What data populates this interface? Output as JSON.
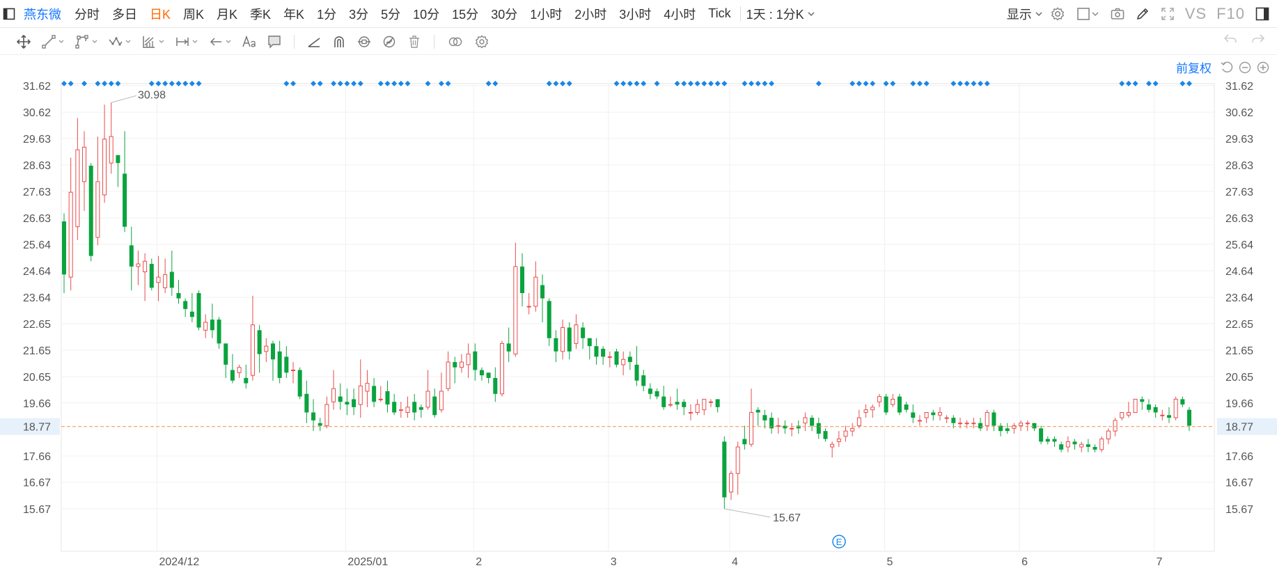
{
  "topbar": {
    "stock_name": "燕东微",
    "periods": [
      {
        "label": "分时",
        "active": false
      },
      {
        "label": "多日",
        "active": false
      },
      {
        "label": "日K",
        "active": true
      },
      {
        "label": "周K",
        "active": false
      },
      {
        "label": "月K",
        "active": false
      },
      {
        "label": "季K",
        "active": false
      },
      {
        "label": "年K",
        "active": false
      },
      {
        "label": "1分",
        "active": false
      },
      {
        "label": "3分",
        "active": false
      },
      {
        "label": "5分",
        "active": false
      },
      {
        "label": "10分",
        "active": false
      },
      {
        "label": "15分",
        "active": false
      },
      {
        "label": "30分",
        "active": false
      },
      {
        "label": "1小时",
        "active": false
      },
      {
        "label": "2小时",
        "active": false
      },
      {
        "label": "3小时",
        "active": false
      },
      {
        "label": "4小时",
        "active": false
      },
      {
        "label": "Tick",
        "active": false
      }
    ],
    "cycle_label": "1天 : 1分K",
    "display_label": "显示",
    "vs_label": "VS",
    "f10_label": "F10"
  },
  "toolbar": {
    "tools": [
      "move-icon",
      "line-icon",
      "polyline-icon",
      "wave-icon",
      "channel-icon",
      "measure-icon",
      "arrow-icon",
      "text-icon",
      "comment-icon",
      "ray-icon",
      "magnet-icon",
      "lock-icon",
      "hide-icon",
      "trash-icon",
      "link-icon",
      "settings-icon"
    ]
  },
  "adjust": {
    "label": "前复权"
  },
  "chart_data": {
    "type": "candlestick",
    "title": "",
    "x_tick_labels": [
      "2024/12",
      "2025/01",
      "2",
      "3",
      "4",
      "5",
      "6",
      "7"
    ],
    "y_ticks": [
      31.62,
      30.62,
      29.63,
      28.63,
      27.63,
      26.63,
      25.64,
      24.64,
      23.64,
      22.65,
      21.65,
      20.65,
      19.66,
      18.77,
      17.66,
      16.67,
      15.67
    ],
    "ylim": [
      14.8,
      31.96
    ],
    "current_price": 18.77,
    "max_label": 30.98,
    "min_label": 15.67,
    "event_marker": "E",
    "colors": {
      "up": "#e84b4b",
      "down": "#0aa33e",
      "signal": "#1a86e8",
      "price_line": "#f0914a",
      "grid": "#f0f0f0"
    },
    "candles": [
      [
        26.5,
        24.5,
        23.8,
        26.8
      ],
      [
        24.4,
        27.6,
        23.9,
        28.9
      ],
      [
        26.3,
        29.2,
        25.8,
        30.4
      ],
      [
        28.0,
        29.3,
        26.9,
        29.9
      ],
      [
        28.6,
        25.2,
        25.0,
        28.7
      ],
      [
        25.9,
        28.0,
        25.6,
        29.7
      ],
      [
        27.5,
        29.6,
        27.2,
        30.9
      ],
      [
        28.7,
        29.7,
        28.3,
        30.98
      ],
      [
        29.0,
        28.7,
        27.8,
        29.0
      ],
      [
        28.3,
        26.3,
        26.1,
        29.9
      ],
      [
        25.6,
        24.8,
        23.9,
        26.3
      ],
      [
        24.8,
        24.9,
        24.1,
        25.4
      ],
      [
        24.6,
        25.0,
        23.5,
        25.3
      ],
      [
        24.9,
        24.0,
        23.9,
        25.1
      ],
      [
        24.2,
        24.4,
        23.5,
        25.2
      ],
      [
        24.0,
        24.5,
        23.8,
        25.1
      ],
      [
        24.6,
        24.0,
        23.7,
        25.4
      ],
      [
        23.8,
        23.6,
        23.4,
        24.3
      ],
      [
        23.5,
        23.2,
        22.9,
        23.6
      ],
      [
        23.1,
        22.9,
        22.7,
        23.8
      ],
      [
        23.8,
        22.5,
        22.4,
        23.9
      ],
      [
        22.4,
        22.7,
        22.1,
        23.0
      ],
      [
        22.8,
        22.4,
        22.1,
        23.4
      ],
      [
        22.8,
        21.9,
        21.7,
        22.9
      ],
      [
        21.9,
        21.1,
        20.6,
        21.9
      ],
      [
        20.9,
        20.5,
        20.4,
        21.5
      ],
      [
        20.8,
        21.0,
        20.6,
        21.1
      ],
      [
        20.6,
        20.4,
        20.2,
        21.1
      ],
      [
        20.7,
        22.6,
        20.5,
        23.7
      ],
      [
        22.4,
        21.5,
        20.8,
        22.6
      ],
      [
        21.6,
        21.8,
        21.2,
        22.1
      ],
      [
        21.9,
        21.3,
        20.5,
        22.0
      ],
      [
        21.6,
        20.6,
        20.4,
        22.0
      ],
      [
        21.4,
        20.8,
        20.6,
        21.8
      ],
      [
        20.9,
        20.9,
        20.4,
        21.2
      ],
      [
        20.9,
        19.9,
        19.8,
        21.0
      ],
      [
        20.0,
        19.3,
        18.9,
        20.5
      ],
      [
        19.3,
        19.0,
        18.6,
        19.8
      ],
      [
        18.9,
        18.8,
        18.6,
        19.1
      ],
      [
        18.8,
        19.6,
        18.7,
        19.9
      ],
      [
        19.7,
        20.2,
        19.4,
        20.9
      ],
      [
        19.9,
        19.7,
        19.4,
        20.4
      ],
      [
        19.7,
        19.6,
        19.2,
        20.2
      ],
      [
        19.8,
        19.5,
        19.2,
        20.2
      ],
      [
        19.6,
        20.3,
        19.1,
        21.3
      ],
      [
        20.1,
        20.4,
        19.5,
        20.9
      ],
      [
        20.3,
        19.7,
        19.5,
        20.6
      ],
      [
        19.8,
        19.8,
        19.7,
        20.3
      ],
      [
        20.1,
        19.6,
        19.3,
        20.5
      ],
      [
        19.7,
        19.3,
        19.2,
        20.0
      ],
      [
        19.4,
        19.4,
        19.1,
        19.7
      ],
      [
        19.3,
        19.5,
        19.1,
        19.9
      ],
      [
        19.7,
        19.3,
        19.0,
        20.0
      ],
      [
        19.5,
        19.4,
        19.1,
        19.6
      ],
      [
        19.5,
        20.1,
        19.4,
        20.9
      ],
      [
        19.9,
        19.2,
        19.1,
        20.2
      ],
      [
        19.4,
        20.1,
        19.3,
        20.8
      ],
      [
        20.2,
        21.2,
        20.1,
        21.6
      ],
      [
        21.2,
        21.0,
        20.4,
        21.4
      ],
      [
        21.0,
        21.2,
        20.8,
        21.5
      ],
      [
        21.1,
        21.5,
        20.6,
        21.9
      ],
      [
        21.6,
        20.9,
        20.5,
        21.9
      ],
      [
        20.9,
        20.7,
        20.5,
        21.0
      ],
      [
        20.8,
        20.6,
        20.4,
        20.8
      ],
      [
        20.6,
        20.0,
        19.7,
        21.0
      ],
      [
        20.0,
        21.9,
        19.9,
        22.0
      ],
      [
        21.9,
        21.6,
        21.2,
        22.5
      ],
      [
        21.5,
        24.8,
        21.4,
        25.7
      ],
      [
        24.8,
        23.8,
        23.3,
        25.3
      ],
      [
        23.3,
        23.3,
        23.0,
        23.8
      ],
      [
        23.3,
        24.4,
        23.1,
        25.0
      ],
      [
        24.1,
        23.6,
        22.7,
        24.5
      ],
      [
        23.5,
        22.1,
        21.8,
        23.6
      ],
      [
        22.1,
        21.6,
        21.2,
        22.4
      ],
      [
        21.6,
        22.5,
        21.3,
        22.8
      ],
      [
        22.5,
        21.6,
        21.3,
        22.7
      ],
      [
        21.9,
        22.6,
        21.7,
        23.0
      ],
      [
        22.5,
        22.1,
        21.7,
        22.7
      ],
      [
        22.1,
        21.8,
        21.3,
        22.1
      ],
      [
        21.8,
        21.4,
        21.1,
        22.1
      ],
      [
        21.7,
        21.4,
        21.1,
        21.8
      ],
      [
        21.4,
        21.4,
        21.0,
        21.6
      ],
      [
        21.6,
        21.1,
        21.0,
        21.7
      ],
      [
        21.1,
        21.3,
        20.7,
        21.6
      ],
      [
        21.4,
        21.2,
        20.9,
        21.6
      ],
      [
        21.1,
        20.5,
        20.3,
        21.8
      ],
      [
        20.7,
        20.3,
        20.1,
        20.9
      ],
      [
        20.2,
        20.0,
        19.8,
        20.4
      ],
      [
        20.1,
        19.9,
        19.8,
        20.2
      ],
      [
        19.9,
        19.5,
        19.4,
        20.3
      ],
      [
        19.6,
        19.6,
        19.5,
        19.9
      ],
      [
        19.7,
        19.6,
        19.4,
        20.2
      ],
      [
        19.7,
        19.5,
        19.2,
        19.8
      ],
      [
        19.3,
        19.3,
        19.0,
        19.6
      ],
      [
        19.3,
        19.6,
        19.2,
        19.8
      ],
      [
        19.4,
        19.8,
        19.2,
        19.8
      ],
      [
        19.7,
        19.7,
        19.5,
        19.8
      ],
      [
        19.8,
        19.5,
        19.3,
        19.8
      ],
      [
        18.2,
        16.1,
        15.67,
        18.4
      ],
      [
        16.3,
        17.0,
        16.0,
        17.1
      ],
      [
        17.0,
        18.0,
        16.2,
        18.2
      ],
      [
        18.3,
        18.1,
        17.9,
        18.8
      ],
      [
        18.1,
        19.3,
        18.0,
        20.2
      ],
      [
        19.4,
        19.3,
        18.8,
        19.5
      ],
      [
        19.2,
        19.0,
        18.7,
        19.4
      ],
      [
        19.1,
        18.7,
        18.5,
        19.3
      ],
      [
        18.8,
        18.8,
        18.5,
        19.1
      ],
      [
        18.8,
        18.7,
        18.5,
        19.0
      ],
      [
        18.7,
        18.7,
        18.4,
        18.9
      ],
      [
        18.8,
        18.7,
        18.5,
        19.0
      ],
      [
        18.9,
        19.1,
        18.6,
        19.3
      ],
      [
        19.1,
        18.8,
        18.6,
        19.2
      ],
      [
        18.9,
        18.5,
        18.3,
        19.1
      ],
      [
        18.6,
        18.3,
        18.2,
        18.7
      ],
      [
        18.0,
        18.1,
        17.6,
        18.2
      ],
      [
        18.2,
        18.3,
        18.0,
        18.6
      ],
      [
        18.4,
        18.6,
        18.2,
        18.8
      ],
      [
        18.6,
        18.7,
        18.4,
        18.9
      ],
      [
        18.8,
        19.1,
        18.7,
        19.4
      ],
      [
        19.3,
        19.4,
        19.1,
        19.6
      ],
      [
        19.4,
        19.5,
        19.1,
        19.6
      ],
      [
        19.7,
        19.9,
        19.5,
        20.0
      ],
      [
        19.9,
        19.3,
        19.2,
        20.0
      ],
      [
        19.6,
        19.8,
        19.5,
        20.0
      ],
      [
        19.9,
        19.3,
        19.2,
        20.0
      ],
      [
        19.6,
        19.4,
        19.3,
        19.7
      ],
      [
        19.3,
        19.1,
        18.9,
        19.6
      ],
      [
        19.0,
        19.0,
        18.8,
        19.2
      ],
      [
        19.1,
        19.3,
        18.9,
        19.3
      ],
      [
        19.3,
        19.2,
        19.0,
        19.4
      ],
      [
        19.2,
        19.3,
        19.0,
        19.5
      ],
      [
        19.1,
        19.1,
        18.9,
        19.2
      ],
      [
        19.1,
        18.9,
        18.7,
        19.2
      ],
      [
        18.9,
        18.9,
        18.7,
        19.1
      ],
      [
        18.9,
        18.9,
        18.7,
        19.0
      ],
      [
        18.9,
        18.9,
        18.7,
        19.1
      ],
      [
        18.9,
        18.7,
        18.6,
        19.1
      ],
      [
        18.8,
        19.3,
        18.6,
        19.4
      ],
      [
        19.3,
        18.8,
        18.6,
        19.4
      ],
      [
        18.8,
        18.6,
        18.4,
        18.9
      ],
      [
        18.7,
        18.6,
        18.5,
        18.9
      ],
      [
        18.7,
        18.8,
        18.5,
        18.9
      ],
      [
        18.8,
        18.9,
        18.6,
        19.0
      ],
      [
        18.9,
        18.9,
        18.6,
        19.0
      ],
      [
        18.9,
        18.7,
        18.6,
        18.9
      ],
      [
        18.7,
        18.2,
        18.1,
        18.8
      ],
      [
        18.3,
        18.2,
        18.1,
        18.4
      ],
      [
        18.3,
        18.2,
        18.0,
        18.4
      ],
      [
        18.1,
        17.9,
        17.8,
        18.2
      ],
      [
        18.0,
        18.2,
        17.8,
        18.4
      ],
      [
        18.2,
        18.1,
        17.9,
        18.3
      ],
      [
        18.0,
        18.1,
        17.8,
        18.2
      ],
      [
        18.1,
        18.0,
        17.8,
        18.3
      ],
      [
        18.0,
        17.9,
        17.8,
        18.1
      ],
      [
        17.9,
        18.3,
        17.8,
        18.4
      ],
      [
        18.3,
        18.6,
        18.1,
        18.7
      ],
      [
        18.6,
        19.0,
        18.4,
        19.1
      ],
      [
        19.1,
        19.3,
        19.0,
        19.3
      ],
      [
        19.2,
        19.3,
        19.1,
        19.7
      ],
      [
        19.3,
        19.8,
        19.3,
        19.8
      ],
      [
        19.8,
        19.7,
        19.4,
        19.9
      ],
      [
        19.6,
        19.4,
        19.3,
        19.8
      ],
      [
        19.5,
        19.3,
        19.1,
        19.6
      ],
      [
        19.2,
        19.2,
        19.0,
        19.4
      ],
      [
        19.2,
        19.1,
        18.9,
        19.5
      ],
      [
        19.1,
        19.8,
        19.0,
        19.9
      ],
      [
        19.8,
        19.6,
        19.5,
        19.9
      ],
      [
        19.4,
        18.8,
        18.6,
        19.5
      ]
    ],
    "signal_indices": [
      0,
      1,
      3,
      5,
      6,
      7,
      8,
      13,
      14,
      15,
      16,
      17,
      18,
      19,
      20,
      33,
      34,
      37,
      38,
      40,
      41,
      42,
      43,
      44,
      47,
      48,
      49,
      50,
      51,
      54,
      56,
      57,
      63,
      64,
      72,
      73,
      74,
      75,
      82,
      83,
      84,
      85,
      86,
      88,
      91,
      92,
      93,
      94,
      95,
      96,
      97,
      98,
      101,
      102,
      103,
      104,
      105,
      112,
      117,
      118,
      119,
      120,
      122,
      123,
      126,
      127,
      128,
      132,
      133,
      134,
      135,
      136,
      137,
      157,
      158,
      159,
      161,
      162,
      166,
      167
    ]
  }
}
